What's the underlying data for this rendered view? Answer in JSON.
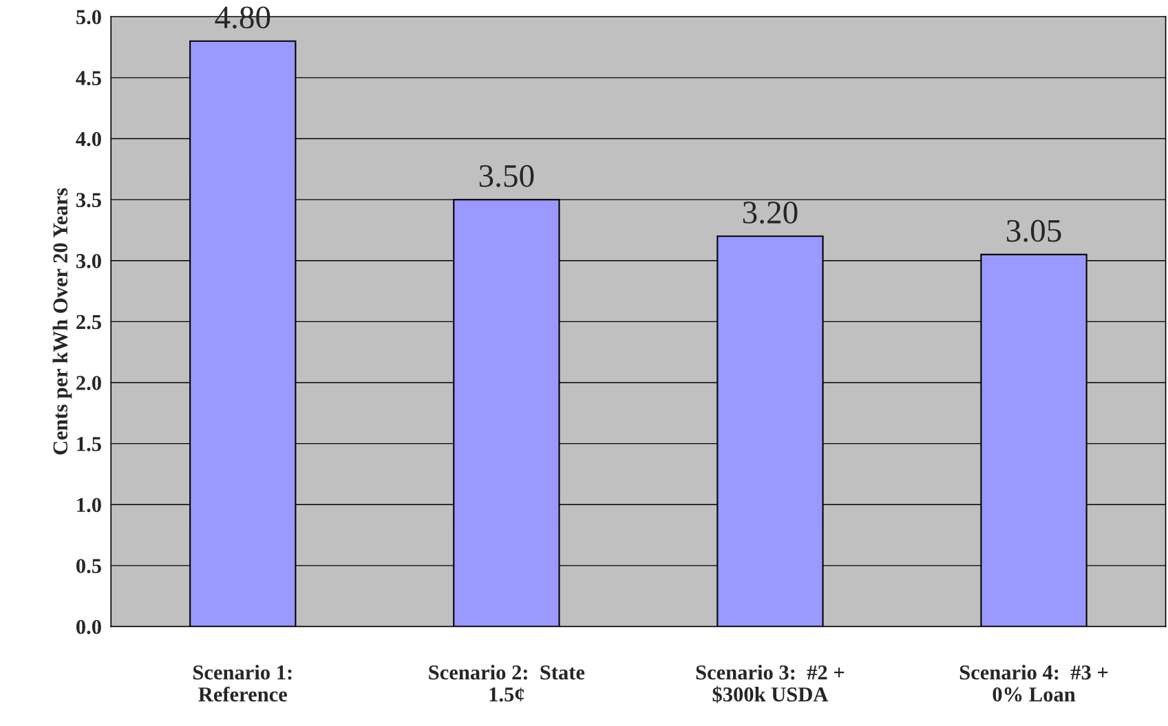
{
  "chart_data": {
    "type": "bar",
    "ylabel": "Cents per kWh Over 20 Years",
    "categories": [
      "Scenario 1:\nReference",
      "Scenario 2:  State\n1.5¢",
      "Scenario 3:  #2 +\n$300k USDA",
      "Scenario 4:  #3 +\n0% Loan"
    ],
    "values": [
      4.8,
      3.5,
      3.2,
      3.05
    ],
    "value_labels": [
      "4.80",
      "3.50",
      "3.20",
      "3.05"
    ],
    "color": "#9999ff",
    "ylim": [
      0,
      5
    ],
    "yticks": [
      {
        "value": 0,
        "label": "0.0"
      },
      {
        "value": 0.5,
        "label": "0.5"
      },
      {
        "value": 1,
        "label": "1.0"
      },
      {
        "value": 1.5,
        "label": "1.5"
      },
      {
        "value": 2,
        "label": "2.0"
      },
      {
        "value": 2.5,
        "label": "2.5"
      },
      {
        "value": 3,
        "label": "3.0"
      },
      {
        "value": 3.5,
        "label": "3.5"
      },
      {
        "value": 4,
        "label": "4.0"
      },
      {
        "value": 4.5,
        "label": "4.5"
      },
      {
        "value": 5,
        "label": "5.0"
      }
    ],
    "grid": "y"
  }
}
